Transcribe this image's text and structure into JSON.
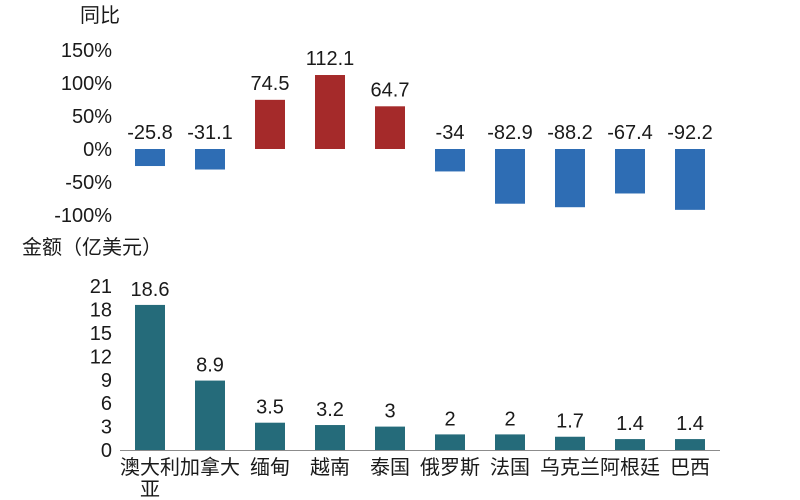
{
  "chart_data": [
    {
      "type": "bar",
      "title": "",
      "ylabel": "同比",
      "xlabel": "",
      "ylim": [
        -100,
        150
      ],
      "yticks": [
        "150%",
        "100%",
        "50%",
        "0%",
        "-50%",
        "-100%"
      ],
      "categories": [
        "澳大利亚",
        "加拿大",
        "缅甸",
        "越南",
        "泰国",
        "俄罗斯",
        "法国",
        "乌克兰",
        "阿根廷",
        "巴西"
      ],
      "values": [
        -25.8,
        -31.1,
        74.5,
        112.1,
        64.7,
        -34,
        -82.9,
        -88.2,
        -67.4,
        -92.2
      ],
      "value_labels": [
        "-25.8",
        "-31.1",
        "74.5",
        "112.1",
        "64.7",
        "-34",
        "-82.9",
        "-88.2",
        "-67.4",
        "-92.2"
      ],
      "colors": {
        "positive": "#a52a2a",
        "negative": "#2e6db4"
      },
      "grid": false
    },
    {
      "type": "bar",
      "title": "",
      "ylabel": "金额（亿美元）",
      "xlabel": "",
      "ylim": [
        0,
        21
      ],
      "yticks": [
        "21",
        "18",
        "15",
        "12",
        "9",
        "6",
        "3",
        "0"
      ],
      "categories": [
        "澳大利亚",
        "加拿大",
        "缅甸",
        "越南",
        "泰国",
        "俄罗斯",
        "法国",
        "乌克兰",
        "阿根廷",
        "巴西"
      ],
      "category_labels": [
        "澳大利\n亚",
        "加拿大",
        "缅甸",
        "越南",
        "泰国",
        "俄罗斯",
        "法国",
        "乌克兰",
        "阿根廷",
        "巴西"
      ],
      "values": [
        18.6,
        8.9,
        3.5,
        3.2,
        3,
        2,
        2,
        1.7,
        1.4,
        1.4
      ],
      "value_labels": [
        "18.6",
        "8.9",
        "3.5",
        "3.2",
        "3",
        "2",
        "2",
        "1.7",
        "1.4",
        "1.4"
      ],
      "colors": {
        "bar": "#256b7a"
      },
      "grid": false
    }
  ]
}
